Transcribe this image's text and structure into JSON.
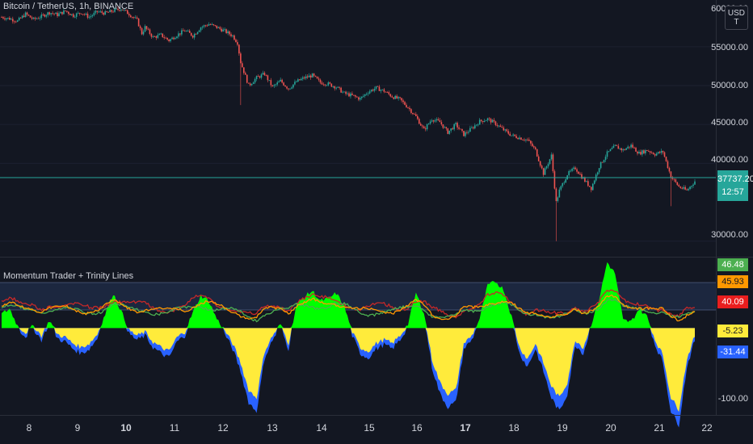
{
  "header": {
    "symbol_title": "Bitcoin / TetherUS, 1h, BINANCE",
    "currency_button": "USD\nT"
  },
  "indicator": {
    "title": "Momentum Trader + Trinity Lines"
  },
  "price_axis": {
    "labels": [
      "55000.00",
      "50000.00",
      "45000.00",
      "40000.00",
      "30000.00"
    ],
    "top_clipped_label": "60000.00",
    "current_price": "37737.20",
    "countdown": "12:57"
  },
  "indicator_axis": {
    "labels": [
      {
        "text": "46.48",
        "bg": "#4caf50",
        "fg": "#ffffff"
      },
      {
        "text": "45.93",
        "bg": "#ff9800",
        "fg": "#131722"
      },
      {
        "text": "40.09",
        "bg": "#e91e1e",
        "fg": "#ffffff"
      },
      {
        "text": "-5.23",
        "bg": "#ffeb3b",
        "fg": "#131722"
      },
      {
        "text": "-31.44",
        "bg": "#2962ff",
        "fg": "#ffffff"
      },
      {
        "text": "-100.00",
        "bg": "",
        "fg": "#d1d4dc"
      }
    ]
  },
  "time_axis": {
    "labels": [
      "8",
      "9",
      "10",
      "11",
      "12",
      "13",
      "14",
      "15",
      "16",
      "17",
      "18",
      "19",
      "20",
      "21",
      "22"
    ],
    "bold": [
      "10",
      "17"
    ]
  },
  "colors": {
    "background": "#131722",
    "up_candle": "#26a69a",
    "down_candle": "#ef5350",
    "price_line": "#26a69a",
    "osc_positive": "#00ff00",
    "osc_negative": "#ffeb3b",
    "osc_blue": "#2962ff",
    "line_red": "#c62828",
    "line_orange": "#ff9800",
    "line_green": "#4caf50",
    "band_fill": "#1e2a44"
  },
  "chart_data": {
    "type": "candlestick",
    "symbol": "BTCUSDT",
    "interval": "1h",
    "ylim": [
      28000,
      61000
    ],
    "anchors_price": [
      [
        0,
        58800
      ],
      [
        5,
        58600
      ],
      [
        10,
        58300
      ],
      [
        15,
        59200
      ],
      [
        20,
        58500
      ],
      [
        25,
        58900
      ],
      [
        30,
        59400
      ],
      [
        35,
        59100
      ],
      [
        40,
        59600
      ],
      [
        45,
        59000
      ],
      [
        50,
        59400
      ],
      [
        55,
        58800
      ],
      [
        60,
        59500
      ],
      [
        65,
        59300
      ],
      [
        70,
        59600
      ],
      [
        75,
        59900
      ],
      [
        80,
        59200
      ],
      [
        85,
        58400
      ],
      [
        88,
        56700
      ],
      [
        90,
        57500
      ],
      [
        95,
        56200
      ],
      [
        100,
        56500
      ],
      [
        105,
        55800
      ],
      [
        110,
        56500
      ],
      [
        115,
        57100
      ],
      [
        120,
        56400
      ],
      [
        125,
        57500
      ],
      [
        130,
        57900
      ],
      [
        135,
        57500
      ],
      [
        140,
        57000
      ],
      [
        145,
        56400
      ],
      [
        148,
        55500
      ],
      [
        150,
        53000
      ],
      [
        155,
        50000
      ],
      [
        160,
        51000
      ],
      [
        165,
        51500
      ],
      [
        170,
        49800
      ],
      [
        175,
        50600
      ],
      [
        180,
        49600
      ],
      [
        185,
        50500
      ],
      [
        190,
        51000
      ],
      [
        195,
        51300
      ],
      [
        200,
        50400
      ],
      [
        205,
        50200
      ],
      [
        210,
        49800
      ],
      [
        215,
        49000
      ],
      [
        220,
        48700
      ],
      [
        225,
        48300
      ],
      [
        230,
        49200
      ],
      [
        235,
        49700
      ],
      [
        240,
        49300
      ],
      [
        245,
        48600
      ],
      [
        250,
        48200
      ],
      [
        255,
        47200
      ],
      [
        260,
        46000
      ],
      [
        265,
        44300
      ],
      [
        270,
        45700
      ],
      [
        275,
        45300
      ],
      [
        280,
        44000
      ],
      [
        285,
        45000
      ],
      [
        290,
        43700
      ],
      [
        295,
        44500
      ],
      [
        300,
        45400
      ],
      [
        305,
        45700
      ],
      [
        310,
        45100
      ],
      [
        315,
        44300
      ],
      [
        320,
        43600
      ],
      [
        325,
        43300
      ],
      [
        330,
        43000
      ],
      [
        335,
        41700
      ],
      [
        340,
        38700
      ],
      [
        345,
        41000
      ],
      [
        348,
        35000
      ],
      [
        350,
        36500
      ],
      [
        355,
        38600
      ],
      [
        360,
        39400
      ],
      [
        365,
        38000
      ],
      [
        370,
        36800
      ],
      [
        375,
        39600
      ],
      [
        380,
        41300
      ],
      [
        385,
        42200
      ],
      [
        390,
        41700
      ],
      [
        395,
        42300
      ],
      [
        400,
        41300
      ],
      [
        405,
        41700
      ],
      [
        410,
        41200
      ],
      [
        415,
        41500
      ],
      [
        420,
        38300
      ],
      [
        425,
        37000
      ],
      [
        430,
        36500
      ],
      [
        435,
        37700
      ]
    ],
    "anchors_osc": [
      [
        0,
        18
      ],
      [
        5,
        25
      ],
      [
        10,
        3
      ],
      [
        15,
        -6
      ],
      [
        20,
        3
      ],
      [
        25,
        -10
      ],
      [
        30,
        10
      ],
      [
        35,
        -8
      ],
      [
        40,
        -12
      ],
      [
        45,
        -20
      ],
      [
        50,
        -25
      ],
      [
        55,
        -20
      ],
      [
        60,
        -8
      ],
      [
        65,
        18
      ],
      [
        70,
        45
      ],
      [
        75,
        22
      ],
      [
        80,
        -3
      ],
      [
        85,
        -10
      ],
      [
        90,
        -5
      ],
      [
        95,
        -18
      ],
      [
        100,
        -25
      ],
      [
        105,
        -30
      ],
      [
        110,
        -12
      ],
      [
        115,
        -5
      ],
      [
        120,
        20
      ],
      [
        125,
        42
      ],
      [
        130,
        35
      ],
      [
        135,
        12
      ],
      [
        140,
        -3
      ],
      [
        145,
        -20
      ],
      [
        150,
        -45
      ],
      [
        155,
        -80
      ],
      [
        160,
        -90
      ],
      [
        165,
        -30
      ],
      [
        170,
        -10
      ],
      [
        175,
        5
      ],
      [
        180,
        -20
      ],
      [
        185,
        30
      ],
      [
        190,
        40
      ],
      [
        195,
        48
      ],
      [
        200,
        35
      ],
      [
        205,
        38
      ],
      [
        210,
        45
      ],
      [
        215,
        28
      ],
      [
        220,
        -5
      ],
      [
        225,
        -25
      ],
      [
        230,
        -30
      ],
      [
        235,
        -20
      ],
      [
        240,
        -15
      ],
      [
        245,
        -20
      ],
      [
        250,
        -10
      ],
      [
        255,
        5
      ],
      [
        260,
        45
      ],
      [
        265,
        20
      ],
      [
        270,
        -40
      ],
      [
        275,
        -70
      ],
      [
        280,
        -85
      ],
      [
        285,
        -80
      ],
      [
        290,
        -20
      ],
      [
        295,
        -10
      ],
      [
        300,
        12
      ],
      [
        305,
        55
      ],
      [
        310,
        60
      ],
      [
        315,
        50
      ],
      [
        320,
        15
      ],
      [
        325,
        -25
      ],
      [
        330,
        -40
      ],
      [
        335,
        -20
      ],
      [
        340,
        -45
      ],
      [
        345,
        -75
      ],
      [
        350,
        -90
      ],
      [
        355,
        -70
      ],
      [
        360,
        -15
      ],
      [
        365,
        -25
      ],
      [
        370,
        5
      ],
      [
        375,
        38
      ],
      [
        380,
        85
      ],
      [
        385,
        70
      ],
      [
        390,
        10
      ],
      [
        395,
        8
      ],
      [
        400,
        25
      ],
      [
        405,
        15
      ],
      [
        410,
        -15
      ],
      [
        415,
        -35
      ],
      [
        420,
        -90
      ],
      [
        425,
        -105
      ],
      [
        430,
        -40
      ],
      [
        435,
        -10
      ]
    ],
    "osc_ylim": [
      -110,
      90
    ],
    "trinity_levels": {
      "upper": 40,
      "lower": 18
    },
    "x_time_labels": [
      "8",
      "9",
      "10",
      "11",
      "12",
      "13",
      "14",
      "15",
      "16",
      "17",
      "18",
      "19",
      "20",
      "21",
      "22"
    ]
  }
}
